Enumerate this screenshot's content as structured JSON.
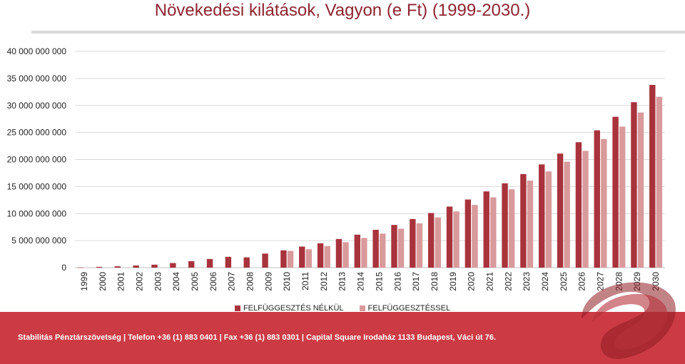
{
  "header": {
    "title": "Növekedési kilátások, Vagyon (e Ft) (1999-2030.)"
  },
  "legend": {
    "series_1": "FELFÜGGESZTÉS NÉLKÜL",
    "series_2": "FELFÜGGESZTÉSSEL"
  },
  "footer": {
    "text": "Stabilitás Pénztárszövetség | Telefon +36 (1) 883 0401 | Fax +36 (1) 883 0301 | Capital Square Irodaház 1133 Budapest, Váci út 76."
  },
  "colors": {
    "series_1": "#a8333c",
    "series_2": "#d99a9c",
    "footer_bg": "#cc3b44",
    "title": "#8e2431"
  },
  "chart_data": {
    "type": "bar",
    "title": "Növekedési kilátások, Vagyon (e Ft) (1999-2030.)",
    "categories": [
      "1999",
      "2000",
      "2001",
      "2002",
      "2003",
      "2004",
      "2005",
      "2006",
      "2007",
      "2008",
      "2009",
      "2010",
      "2011",
      "2012",
      "2013",
      "2014",
      "2015",
      "2016",
      "2017",
      "2018",
      "2019",
      "2020",
      "2021",
      "2022",
      "2023",
      "2024",
      "2025",
      "2026",
      "2027",
      "2028",
      "2029",
      "2030"
    ],
    "y_ticks": [
      "0",
      "5 000 000 000",
      "10 000 000 000",
      "15 000 000 000",
      "20 000 000 000",
      "25 000 000 000",
      "30 000 000 000",
      "35 000 000 000",
      "40 000 000 000"
    ],
    "ylim": [
      0,
      40000000000
    ],
    "grid": true,
    "legend_position": "bottom",
    "series": [
      {
        "name": "FELFÜGGESZTÉS NÉLKÜL",
        "values": [
          50000000,
          150000000,
          250000000,
          400000000,
          550000000,
          850000000,
          1200000000,
          1600000000,
          2000000000,
          1900000000,
          2600000000,
          3200000000,
          3900000000,
          4500000000,
          5300000000,
          6100000000,
          7000000000,
          7900000000,
          9000000000,
          10100000000,
          11300000000,
          12600000000,
          14100000000,
          15600000000,
          17300000000,
          19100000000,
          21100000000,
          23200000000,
          25400000000,
          27900000000,
          30600000000,
          33800000000
        ]
      },
      {
        "name": "FELFÜGGESZTÉSSEL",
        "values": [
          null,
          null,
          null,
          null,
          null,
          null,
          null,
          null,
          null,
          null,
          null,
          3100000000,
          3400000000,
          4000000000,
          4700000000,
          5500000000,
          6300000000,
          7200000000,
          8200000000,
          9300000000,
          10400000000,
          11600000000,
          13000000000,
          14500000000,
          16100000000,
          17800000000,
          19600000000,
          21600000000,
          23800000000,
          26100000000,
          28700000000,
          31600000000
        ]
      }
    ]
  }
}
